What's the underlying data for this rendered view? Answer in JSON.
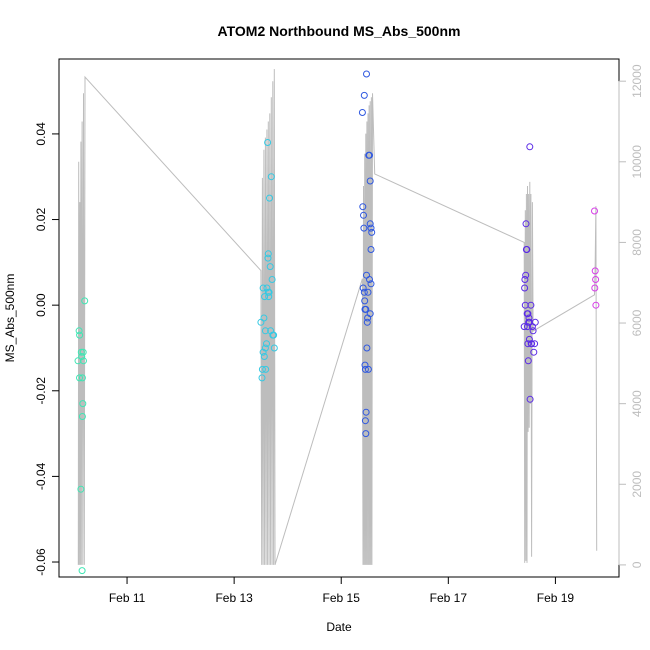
{
  "chart_data": {
    "type": "scatter",
    "title": "ATOM2 Northbound MS_Abs_500nm",
    "xlabel": "Date",
    "ylabel": "MS_Abs_500nm",
    "xlim": [
      "2013-02-09 17:30",
      "2013-02-20 04:30"
    ],
    "ylim": [
      -0.0635,
      0.0575
    ],
    "x_ticks": [
      "Feb 11",
      "Feb 13",
      "Feb 15",
      "Feb 17",
      "Feb 19"
    ],
    "x_tick_dates": [
      "2013-02-11",
      "2013-02-13",
      "2013-02-15",
      "2013-02-17",
      "2013-02-19"
    ],
    "y_ticks": [
      -0.06,
      -0.04,
      -0.02,
      0.0,
      0.02,
      0.04
    ],
    "y_tick_labels": [
      "-0.06",
      "-0.04",
      "-0.02",
      "0.00",
      "0.02",
      "0.04"
    ],
    "y2_ticks": [
      0,
      2000,
      4000,
      6000,
      8000,
      10000,
      12000
    ],
    "y2_tick_labels": [
      "0",
      "2000",
      "4000",
      "6000",
      "8000",
      "10000",
      "12000"
    ],
    "y2_lim": [
      -300,
      12550
    ],
    "grid": false,
    "colors": {
      "line": "#bdbdbd",
      "axis": "#000000",
      "right_axis": "#bdbdbd"
    },
    "series": [
      {
        "color": "#3fe6b4",
        "points": [
          [
            "2013-02-10 02:00",
            -0.013
          ],
          [
            "2013-02-10 02:30",
            -0.006
          ],
          [
            "2013-02-10 02:45",
            -0.007
          ],
          [
            "2013-02-10 02:40",
            -0.017
          ],
          [
            "2013-02-10 03:20",
            -0.043
          ],
          [
            "2013-02-10 03:30",
            -0.011
          ],
          [
            "2013-02-10 03:40",
            -0.012
          ],
          [
            "2013-02-10 03:50",
            -0.062
          ],
          [
            "2013-02-10 04:00",
            -0.017
          ],
          [
            "2013-02-10 04:00",
            -0.026
          ],
          [
            "2013-02-10 04:10",
            -0.023
          ],
          [
            "2013-02-10 04:20",
            -0.011
          ],
          [
            "2013-02-10 04:30",
            -0.013
          ],
          [
            "2013-02-10 05:00",
            0.001
          ]
        ]
      },
      {
        "color": "#35c9e3",
        "points": [
          [
            "2013-02-13 12:00",
            -0.004
          ],
          [
            "2013-02-13 12:30",
            -0.017
          ],
          [
            "2013-02-13 12:40",
            -0.015
          ],
          [
            "2013-02-13 13:00",
            -0.011
          ],
          [
            "2013-02-13 13:00",
            0.004
          ],
          [
            "2013-02-13 13:20",
            -0.003
          ],
          [
            "2013-02-13 13:30",
            -0.012
          ],
          [
            "2013-02-13 13:40",
            0.002
          ],
          [
            "2013-02-13 14:00",
            -0.006
          ],
          [
            "2013-02-13 14:00",
            -0.01
          ],
          [
            "2013-02-13 14:10",
            -0.015
          ],
          [
            "2013-02-13 14:30",
            -0.009
          ],
          [
            "2013-02-13 14:40",
            0.004
          ],
          [
            "2013-02-13 15:00",
            0.038
          ],
          [
            "2013-02-13 15:10",
            0.011
          ],
          [
            "2013-02-13 15:20",
            0.012
          ],
          [
            "2013-02-13 15:30",
            0.002
          ],
          [
            "2013-02-13 15:40",
            0.003
          ],
          [
            "2013-02-13 15:50",
            0.025
          ],
          [
            "2013-02-13 16:10",
            0.009
          ],
          [
            "2013-02-13 16:20",
            -0.006
          ],
          [
            "2013-02-13 16:40",
            0.03
          ],
          [
            "2013-02-13 17:00",
            0.006
          ],
          [
            "2013-02-13 17:20",
            -0.007
          ],
          [
            "2013-02-13 17:40",
            -0.007
          ],
          [
            "2013-02-13 18:00",
            -0.01
          ],
          [
            "2013-02-13 15:20",
            0.003
          ]
        ]
      },
      {
        "color": "#2f58e0",
        "points": [
          [
            "2013-02-15 09:30",
            0.045
          ],
          [
            "2013-02-15 09:40",
            0.023
          ],
          [
            "2013-02-15 09:50",
            0.004
          ],
          [
            "2013-02-15 10:00",
            0.021
          ],
          [
            "2013-02-15 10:10",
            0.018
          ],
          [
            "2013-02-15 10:20",
            0.003
          ],
          [
            "2013-02-15 10:20",
            0.049
          ],
          [
            "2013-02-15 10:30",
            0.001
          ],
          [
            "2013-02-15 10:40",
            -0.014
          ],
          [
            "2013-02-15 10:50",
            -0.015
          ],
          [
            "2013-02-15 10:50",
            -0.027
          ],
          [
            "2013-02-15 11:00",
            -0.03
          ],
          [
            "2013-02-15 11:10",
            -0.025
          ],
          [
            "2013-02-15 11:20",
            0.054
          ],
          [
            "2013-02-15 11:20",
            0.007
          ],
          [
            "2013-02-15 11:30",
            -0.01
          ],
          [
            "2013-02-15 11:40",
            -0.004
          ],
          [
            "2013-02-15 11:50",
            -0.003
          ],
          [
            "2013-02-15 12:00",
            0.003
          ],
          [
            "2013-02-15 12:10",
            -0.015
          ],
          [
            "2013-02-15 12:20",
            0.035
          ],
          [
            "2013-02-15 12:40",
            0.035
          ],
          [
            "2013-02-15 12:40",
            0.006
          ],
          [
            "2013-02-15 13:00",
            0.019
          ],
          [
            "2013-02-15 13:00",
            0.029
          ],
          [
            "2013-02-15 13:20",
            0.013
          ],
          [
            "2013-02-15 13:20",
            0.018
          ],
          [
            "2013-02-15 13:40",
            0.017
          ],
          [
            "2013-02-15 13:20",
            0.005
          ],
          [
            "2013-02-15 13:00",
            -0.002
          ],
          [
            "2013-02-15 11:00",
            -0.001
          ],
          [
            "2013-02-15 10:40",
            -0.001
          ]
        ]
      },
      {
        "color": "#5b2be6",
        "points": [
          [
            "2013-02-18 10:00",
            -0.005
          ],
          [
            "2013-02-18 10:10",
            0.004
          ],
          [
            "2013-02-18 10:20",
            0.006
          ],
          [
            "2013-02-18 10:30",
            0.0
          ],
          [
            "2013-02-18 10:40",
            0.007
          ],
          [
            "2013-02-18 10:50",
            0.019
          ],
          [
            "2013-02-18 11:00",
            0.013
          ],
          [
            "2013-02-18 11:10",
            0.013
          ],
          [
            "2013-02-18 11:20",
            -0.002
          ],
          [
            "2013-02-18 11:30",
            -0.005
          ],
          [
            "2013-02-18 11:40",
            -0.009
          ],
          [
            "2013-02-18 11:50",
            -0.013
          ],
          [
            "2013-02-18 12:00",
            -0.004
          ],
          [
            "2013-02-18 12:10",
            -0.003
          ],
          [
            "2013-02-18 12:20",
            -0.004
          ],
          [
            "2013-02-18 12:30",
            0.037
          ],
          [
            "2013-02-18 12:40",
            -0.022
          ],
          [
            "2013-02-18 13:00",
            0.0
          ],
          [
            "2013-02-18 13:10",
            -0.009
          ],
          [
            "2013-02-18 13:20",
            -0.009
          ],
          [
            "2013-02-18 13:40",
            -0.005
          ],
          [
            "2013-02-18 14:00",
            -0.006
          ],
          [
            "2013-02-18 14:20",
            -0.011
          ],
          [
            "2013-02-18 14:40",
            -0.009
          ],
          [
            "2013-02-18 15:00",
            -0.004
          ],
          [
            "2013-02-18 11:40",
            -0.002
          ],
          [
            "2013-02-18 12:20",
            -0.008
          ]
        ]
      },
      {
        "color": "#d63ee8",
        "points": [
          [
            "2013-02-19 17:30",
            0.022
          ],
          [
            "2013-02-19 17:40",
            0.004
          ],
          [
            "2013-02-19 17:50",
            0.008
          ],
          [
            "2013-02-19 18:00",
            0.006
          ],
          [
            "2013-02-19 18:10",
            0.0
          ]
        ]
      }
    ],
    "line_series": {
      "axis": "right",
      "points": [
        [
          "2013-02-10 02:10",
          0
        ],
        [
          "2013-02-10 02:20",
          10000
        ],
        [
          "2013-02-10 02:30",
          0
        ],
        [
          "2013-02-10 02:50",
          9000
        ],
        [
          "2013-02-10 03:00",
          0
        ],
        [
          "2013-02-10 03:20",
          10500
        ],
        [
          "2013-02-10 03:30",
          0
        ],
        [
          "2013-02-10 03:50",
          11000
        ],
        [
          "2013-02-10 04:10",
          0
        ],
        [
          "2013-02-10 04:30",
          11700
        ],
        [
          "2013-02-10 04:50",
          0
        ],
        [
          "2013-02-10 05:10",
          12100
        ],
        [
          "2013-02-13 12:00",
          7300
        ],
        [
          "2013-02-13 12:20",
          0
        ],
        [
          "2013-02-13 12:40",
          9600
        ],
        [
          "2013-02-13 13:00",
          0
        ],
        [
          "2013-02-13 13:20",
          10300
        ],
        [
          "2013-02-13 13:40",
          0
        ],
        [
          "2013-02-13 14:00",
          10600
        ],
        [
          "2013-02-13 14:20",
          0
        ],
        [
          "2013-02-13 14:40",
          10800
        ],
        [
          "2013-02-13 15:00",
          0
        ],
        [
          "2013-02-13 15:20",
          11000
        ],
        [
          "2013-02-13 15:40",
          0
        ],
        [
          "2013-02-13 16:00",
          11200
        ],
        [
          "2013-02-13 16:20",
          0
        ],
        [
          "2013-02-13 16:40",
          11600
        ],
        [
          "2013-02-13 17:00",
          0
        ],
        [
          "2013-02-13 17:20",
          12000
        ],
        [
          "2013-02-13 17:40",
          0
        ],
        [
          "2013-02-13 18:00",
          12300
        ],
        [
          "2013-02-13 18:20",
          0
        ],
        [
          "2013-02-15 09:30",
          7100
        ],
        [
          "2013-02-15 09:45",
          0
        ],
        [
          "2013-02-15 10:00",
          9400
        ],
        [
          "2013-02-15 10:15",
          0
        ],
        [
          "2013-02-15 10:30",
          10200
        ],
        [
          "2013-02-15 10:45",
          0
        ],
        [
          "2013-02-15 11:00",
          10700
        ],
        [
          "2013-02-15 11:15",
          0
        ],
        [
          "2013-02-15 11:30",
          11000
        ],
        [
          "2013-02-15 11:45",
          0
        ],
        [
          "2013-02-15 12:00",
          11200
        ],
        [
          "2013-02-15 12:15",
          0
        ],
        [
          "2013-02-15 12:30",
          11400
        ],
        [
          "2013-02-15 12:45",
          0
        ],
        [
          "2013-02-15 13:00",
          11500
        ],
        [
          "2013-02-15 13:15",
          0
        ],
        [
          "2013-02-15 13:30",
          11600
        ],
        [
          "2013-02-15 13:45",
          0
        ],
        [
          "2013-02-15 14:00",
          11700
        ],
        [
          "2013-02-15 15:00",
          9700
        ],
        [
          "2013-02-18 10:00",
          8000
        ],
        [
          "2013-02-18 10:15",
          50
        ],
        [
          "2013-02-18 10:30",
          8800
        ],
        [
          "2013-02-18 10:45",
          100
        ],
        [
          "2013-02-18 11:00",
          9200
        ],
        [
          "2013-02-18 11:15",
          50
        ],
        [
          "2013-02-18 11:30",
          9400
        ],
        [
          "2013-02-18 11:45",
          3300
        ],
        [
          "2013-02-18 12:00",
          9200
        ],
        [
          "2013-02-18 12:15",
          3400
        ],
        [
          "2013-02-18 12:30",
          9500
        ],
        [
          "2013-02-18 12:45",
          4000
        ],
        [
          "2013-02-18 13:00",
          9200
        ],
        [
          "2013-02-18 13:20",
          200
        ],
        [
          "2013-02-18 13:40",
          9000
        ],
        [
          "2013-02-18 14:00",
          5800
        ],
        [
          "2013-02-19 17:30",
          6700
        ],
        [
          "2013-02-19 17:50",
          7500
        ],
        [
          "2013-02-19 18:10",
          8900
        ],
        [
          "2013-02-19 18:30",
          350
        ]
      ]
    }
  }
}
